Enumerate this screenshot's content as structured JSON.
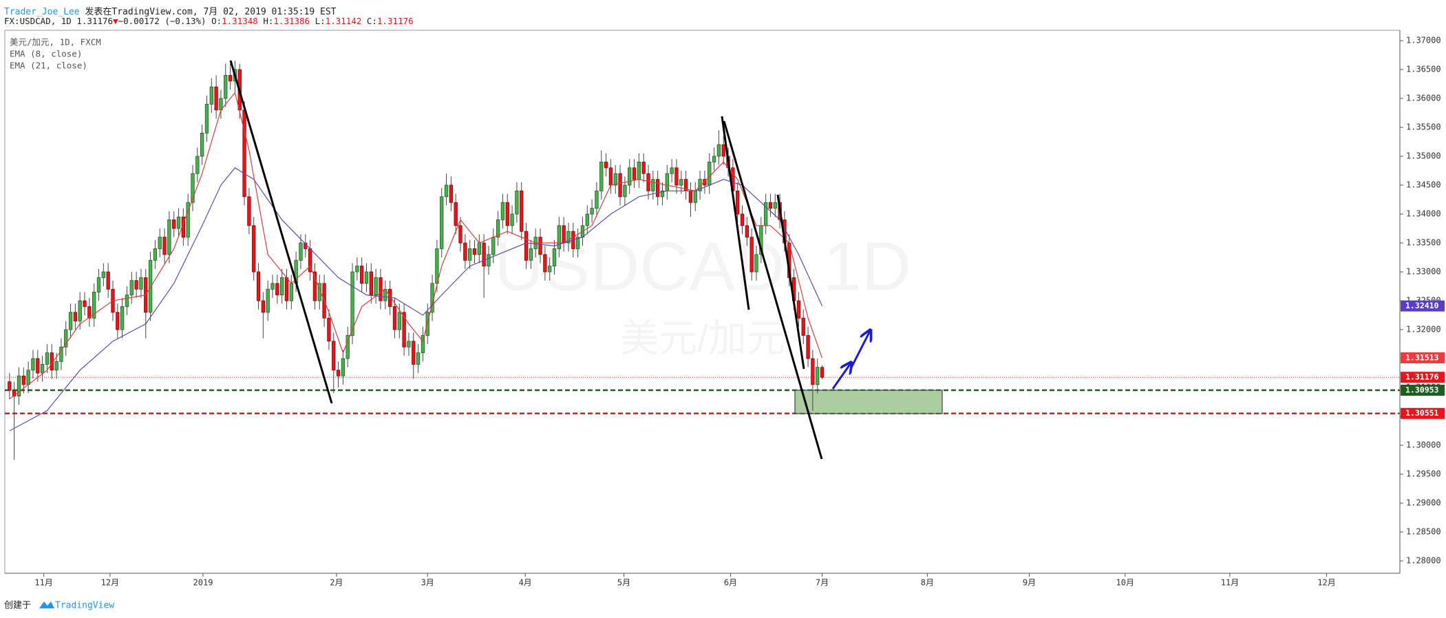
{
  "header": {
    "author": "Trader_Joe_Lee",
    "published": "发表在TradingView.com, 7月 02, 2019 01:35:19 EST",
    "symbol": "FX:USDCAD, 1D",
    "last": "1.31176",
    "arrow": "▼",
    "change": "−0.00172 (−0.13%)",
    "fields": [
      [
        "O:",
        "1.31348"
      ],
      [
        "H:",
        "1.31386"
      ],
      [
        "L:",
        "1.31142"
      ],
      [
        "C:",
        "1.31176"
      ]
    ]
  },
  "footer": {
    "created": "创建于",
    "brand": "TradingView"
  },
  "chart_data": {
    "type": "candlestick",
    "symbol_label": "美元/加元, 1D, FXCM",
    "watermark": {
      "title": "USDCAD, 1D",
      "subtitle": "美元/加元"
    },
    "up_color": "#4caf50",
    "down_color": "#e8161b",
    "wick_color": "#444",
    "xlim": [
      -1,
      296
    ],
    "xticks": [
      {
        "value": 7.3,
        "label": "11月"
      },
      {
        "value": 21.4,
        "label": "12月"
      },
      {
        "value": 41.2,
        "label": "2019"
      },
      {
        "value": 69.6,
        "label": "2月"
      },
      {
        "value": 89,
        "label": "3月"
      },
      {
        "value": 109.8,
        "label": "4月"
      },
      {
        "value": 130.8,
        "label": "5月"
      },
      {
        "value": 153.5,
        "label": "6月"
      },
      {
        "value": 173,
        "label": "7月"
      },
      {
        "value": 195.4,
        "label": "8月"
      },
      {
        "value": 217.1,
        "label": "9月"
      },
      {
        "value": 237.5,
        "label": "10月"
      },
      {
        "value": 259.8,
        "label": "11月"
      },
      {
        "value": 280.4,
        "label": "12月"
      }
    ],
    "ylim": [
      1.27786,
      1.37179
    ],
    "yticks": [
      {
        "value": 1.28,
        "label": "1.28000"
      },
      {
        "value": 1.285,
        "label": "1.28500"
      },
      {
        "value": 1.29,
        "label": "1.29000"
      },
      {
        "value": 1.295,
        "label": "1.29500"
      },
      {
        "value": 1.3,
        "label": "1.30000"
      },
      {
        "value": 1.305,
        "label": "1.30500"
      },
      {
        "value": 1.31,
        "label": "1.31000"
      },
      {
        "value": 1.315,
        "label": "1.31500"
      },
      {
        "value": 1.32,
        "label": "1.32000"
      },
      {
        "value": 1.325,
        "label": "1.32500"
      },
      {
        "value": 1.33,
        "label": "1.33000"
      },
      {
        "value": 1.335,
        "label": "1.33500"
      },
      {
        "value": 1.34,
        "label": "1.34000"
      },
      {
        "value": 1.345,
        "label": "1.34500"
      },
      {
        "value": 1.35,
        "label": "1.35000"
      },
      {
        "value": 1.355,
        "label": "1.35500"
      },
      {
        "value": 1.36,
        "label": "1.36000"
      },
      {
        "value": 1.365,
        "label": "1.36500"
      },
      {
        "value": 1.37,
        "label": "1.37000"
      }
    ],
    "candles": [
      [
        1.311,
        1.3125,
        1.308,
        1.3095
      ],
      [
        1.3095,
        1.311,
        1.2975,
        1.3085
      ],
      [
        1.3085,
        1.3135,
        1.307,
        1.312
      ],
      [
        1.312,
        1.3135,
        1.309,
        1.3105
      ],
      [
        1.3105,
        1.3145,
        1.309,
        1.313
      ],
      [
        1.313,
        1.3165,
        1.3115,
        1.315
      ],
      [
        1.315,
        1.3165,
        1.311,
        1.3125
      ],
      [
        1.3125,
        1.3155,
        1.311,
        1.314
      ],
      [
        1.314,
        1.3175,
        1.3125,
        1.316
      ],
      [
        1.316,
        1.3175,
        1.3115,
        1.313
      ],
      [
        1.313,
        1.316,
        1.3115,
        1.3145
      ],
      [
        1.3145,
        1.3185,
        1.313,
        1.317
      ],
      [
        1.317,
        1.3215,
        1.3155,
        1.32
      ],
      [
        1.32,
        1.3245,
        1.3185,
        1.323
      ],
      [
        1.323,
        1.3245,
        1.32,
        1.3215
      ],
      [
        1.3215,
        1.3265,
        1.32,
        1.325
      ],
      [
        1.325,
        1.3265,
        1.3225,
        1.324
      ],
      [
        1.324,
        1.3255,
        1.3205,
        1.322
      ],
      [
        1.322,
        1.328,
        1.3205,
        1.3265
      ],
      [
        1.3265,
        1.3305,
        1.325,
        1.329
      ],
      [
        1.329,
        1.3315,
        1.3275,
        1.33
      ],
      [
        1.33,
        1.3315,
        1.3255,
        1.327
      ],
      [
        1.327,
        1.3285,
        1.3215,
        1.323
      ],
      [
        1.323,
        1.3245,
        1.3185,
        1.32
      ],
      [
        1.32,
        1.3255,
        1.3185,
        1.324
      ],
      [
        1.324,
        1.3275,
        1.3225,
        1.326
      ],
      [
        1.326,
        1.33,
        1.3245,
        1.3285
      ],
      [
        1.3285,
        1.33,
        1.3255,
        1.327
      ],
      [
        1.327,
        1.3305,
        1.3255,
        1.329
      ],
      [
        1.329,
        1.3305,
        1.3185,
        1.323
      ],
      [
        1.323,
        1.3335,
        1.3215,
        1.332
      ],
      [
        1.332,
        1.3355,
        1.3305,
        1.334
      ],
      [
        1.334,
        1.3375,
        1.3325,
        1.336
      ],
      [
        1.336,
        1.3375,
        1.3315,
        1.333
      ],
      [
        1.333,
        1.3405,
        1.3315,
        1.339
      ],
      [
        1.339,
        1.3405,
        1.336,
        1.3375
      ],
      [
        1.3375,
        1.341,
        1.336,
        1.3395
      ],
      [
        1.3395,
        1.341,
        1.3345,
        1.336
      ],
      [
        1.336,
        1.3435,
        1.3345,
        1.342
      ],
      [
        1.342,
        1.3485,
        1.3405,
        1.347
      ],
      [
        1.347,
        1.3515,
        1.3455,
        1.35
      ],
      [
        1.35,
        1.3555,
        1.3485,
        1.354
      ],
      [
        1.354,
        1.3605,
        1.3525,
        1.359
      ],
      [
        1.359,
        1.3635,
        1.3575,
        1.362
      ],
      [
        1.362,
        1.364,
        1.3565,
        1.358
      ],
      [
        1.358,
        1.3615,
        1.3565,
        1.36
      ],
      [
        1.36,
        1.366,
        1.3585,
        1.364
      ],
      [
        1.364,
        1.366,
        1.3615,
        1.363
      ],
      [
        1.363,
        1.3665,
        1.361,
        1.365
      ],
      [
        1.365,
        1.366,
        1.3565,
        1.358
      ],
      [
        1.358,
        1.3595,
        1.3415,
        1.343
      ],
      [
        1.343,
        1.3445,
        1.3365,
        1.338
      ],
      [
        1.338,
        1.3395,
        1.3285,
        1.33
      ],
      [
        1.33,
        1.3315,
        1.3235,
        1.325
      ],
      [
        1.325,
        1.3265,
        1.3185,
        1.323
      ],
      [
        1.323,
        1.3285,
        1.3215,
        1.327
      ],
      [
        1.327,
        1.3295,
        1.3255,
        1.328
      ],
      [
        1.328,
        1.3295,
        1.3245,
        1.326
      ],
      [
        1.326,
        1.3305,
        1.3245,
        1.329
      ],
      [
        1.329,
        1.3305,
        1.3235,
        1.325
      ],
      [
        1.325,
        1.3295,
        1.3235,
        1.328
      ],
      [
        1.328,
        1.3335,
        1.3265,
        1.332
      ],
      [
        1.332,
        1.3365,
        1.3305,
        1.335
      ],
      [
        1.335,
        1.3365,
        1.3325,
        1.334
      ],
      [
        1.334,
        1.3355,
        1.3285,
        1.33
      ],
      [
        1.33,
        1.3315,
        1.3235,
        1.325
      ],
      [
        1.325,
        1.3295,
        1.3235,
        1.328
      ],
      [
        1.328,
        1.3295,
        1.3205,
        1.322
      ],
      [
        1.322,
        1.3235,
        1.3165,
        1.318
      ],
      [
        1.318,
        1.3195,
        1.309,
        1.313
      ],
      [
        1.313,
        1.3145,
        1.31,
        1.312
      ],
      [
        1.312,
        1.3165,
        1.3105,
        1.315
      ],
      [
        1.315,
        1.3205,
        1.3135,
        1.319
      ],
      [
        1.319,
        1.3315,
        1.3175,
        1.33
      ],
      [
        1.33,
        1.3325,
        1.3285,
        1.331
      ],
      [
        1.331,
        1.3325,
        1.3265,
        1.328
      ],
      [
        1.328,
        1.3315,
        1.3265,
        1.33
      ],
      [
        1.33,
        1.3315,
        1.3245,
        1.326
      ],
      [
        1.326,
        1.3305,
        1.3245,
        1.329
      ],
      [
        1.329,
        1.3305,
        1.3235,
        1.325
      ],
      [
        1.325,
        1.3285,
        1.3235,
        1.327
      ],
      [
        1.327,
        1.3285,
        1.3225,
        1.324
      ],
      [
        1.324,
        1.3255,
        1.3185,
        1.32
      ],
      [
        1.32,
        1.3245,
        1.3185,
        1.323
      ],
      [
        1.323,
        1.3245,
        1.3155,
        1.317
      ],
      [
        1.317,
        1.3195,
        1.3155,
        1.318
      ],
      [
        1.318,
        1.3195,
        1.3115,
        1.314
      ],
      [
        1.314,
        1.3175,
        1.3125,
        1.316
      ],
      [
        1.316,
        1.3205,
        1.3145,
        1.319
      ],
      [
        1.319,
        1.3245,
        1.3175,
        1.323
      ],
      [
        1.323,
        1.3295,
        1.3215,
        1.328
      ],
      [
        1.328,
        1.3355,
        1.3265,
        1.334
      ],
      [
        1.334,
        1.3445,
        1.3325,
        1.343
      ],
      [
        1.343,
        1.347,
        1.3415,
        1.345
      ],
      [
        1.345,
        1.3465,
        1.3405,
        1.342
      ],
      [
        1.342,
        1.3435,
        1.3365,
        1.338
      ],
      [
        1.338,
        1.3395,
        1.3335,
        1.335
      ],
      [
        1.335,
        1.3365,
        1.3305,
        1.332
      ],
      [
        1.332,
        1.3355,
        1.3305,
        1.334
      ],
      [
        1.334,
        1.3355,
        1.3315,
        1.333
      ],
      [
        1.333,
        1.3365,
        1.3315,
        1.335
      ],
      [
        1.335,
        1.3365,
        1.3255,
        1.331
      ],
      [
        1.331,
        1.3345,
        1.3295,
        1.333
      ],
      [
        1.333,
        1.3375,
        1.3315,
        1.336
      ],
      [
        1.336,
        1.3405,
        1.3345,
        1.339
      ],
      [
        1.339,
        1.3435,
        1.3375,
        1.342
      ],
      [
        1.342,
        1.3435,
        1.3365,
        1.338
      ],
      [
        1.338,
        1.3415,
        1.3365,
        1.34
      ],
      [
        1.34,
        1.3455,
        1.3385,
        1.344
      ],
      [
        1.344,
        1.3455,
        1.3355,
        1.337
      ],
      [
        1.337,
        1.3385,
        1.3305,
        1.332
      ],
      [
        1.332,
        1.3355,
        1.3305,
        1.334
      ],
      [
        1.334,
        1.3375,
        1.3325,
        1.336
      ],
      [
        1.336,
        1.3375,
        1.3315,
        1.333
      ],
      [
        1.333,
        1.3345,
        1.3285,
        1.33
      ],
      [
        1.33,
        1.3325,
        1.3285,
        1.331
      ],
      [
        1.331,
        1.3355,
        1.3295,
        1.334
      ],
      [
        1.334,
        1.3395,
        1.3325,
        1.338
      ],
      [
        1.338,
        1.3395,
        1.3335,
        1.335
      ],
      [
        1.335,
        1.3385,
        1.3335,
        1.337
      ],
      [
        1.337,
        1.3385,
        1.3325,
        1.334
      ],
      [
        1.334,
        1.3375,
        1.3325,
        1.336
      ],
      [
        1.336,
        1.3395,
        1.3345,
        1.338
      ],
      [
        1.338,
        1.3415,
        1.3365,
        1.34
      ],
      [
        1.34,
        1.3425,
        1.3385,
        1.341
      ],
      [
        1.341,
        1.3455,
        1.3395,
        1.344
      ],
      [
        1.344,
        1.351,
        1.3425,
        1.349
      ],
      [
        1.349,
        1.3505,
        1.3465,
        1.348
      ],
      [
        1.348,
        1.3495,
        1.3435,
        1.345
      ],
      [
        1.345,
        1.3485,
        1.3435,
        1.347
      ],
      [
        1.347,
        1.3485,
        1.3415,
        1.343
      ],
      [
        1.343,
        1.3465,
        1.3415,
        1.345
      ],
      [
        1.345,
        1.3495,
        1.3435,
        1.348
      ],
      [
        1.348,
        1.3495,
        1.3445,
        1.346
      ],
      [
        1.346,
        1.3505,
        1.3445,
        1.349
      ],
      [
        1.349,
        1.3505,
        1.3455,
        1.347
      ],
      [
        1.347,
        1.3485,
        1.3425,
        1.344
      ],
      [
        1.344,
        1.3475,
        1.3425,
        1.346
      ],
      [
        1.346,
        1.3475,
        1.3415,
        1.343
      ],
      [
        1.343,
        1.3455,
        1.3415,
        1.344
      ],
      [
        1.344,
        1.3485,
        1.3425,
        1.347
      ],
      [
        1.347,
        1.3495,
        1.3455,
        1.348
      ],
      [
        1.348,
        1.3495,
        1.3435,
        1.345
      ],
      [
        1.345,
        1.3475,
        1.3435,
        1.346
      ],
      [
        1.346,
        1.3475,
        1.3425,
        1.344
      ],
      [
        1.344,
        1.3455,
        1.3395,
        1.342
      ],
      [
        1.342,
        1.3455,
        1.3405,
        1.344
      ],
      [
        1.344,
        1.3475,
        1.3425,
        1.346
      ],
      [
        1.346,
        1.3475,
        1.3435,
        1.345
      ],
      [
        1.345,
        1.3505,
        1.3435,
        1.349
      ],
      [
        1.349,
        1.3515,
        1.3475,
        1.35
      ],
      [
        1.35,
        1.3545,
        1.3485,
        1.352
      ],
      [
        1.352,
        1.3535,
        1.3485,
        1.35
      ],
      [
        1.35,
        1.3515,
        1.3465,
        1.348
      ],
      [
        1.348,
        1.3495,
        1.3425,
        1.344
      ],
      [
        1.344,
        1.3455,
        1.3385,
        1.34
      ],
      [
        1.34,
        1.3415,
        1.3365,
        1.338
      ],
      [
        1.338,
        1.3395,
        1.3345,
        1.336
      ],
      [
        1.336,
        1.3375,
        1.3285,
        1.33
      ],
      [
        1.33,
        1.3345,
        1.3285,
        1.333
      ],
      [
        1.333,
        1.3395,
        1.3315,
        1.338
      ],
      [
        1.338,
        1.3435,
        1.3365,
        1.342
      ],
      [
        1.342,
        1.3435,
        1.3395,
        1.341
      ],
      [
        1.341,
        1.3435,
        1.3395,
        1.342
      ],
      [
        1.342,
        1.3435,
        1.3375,
        1.339
      ],
      [
        1.339,
        1.3405,
        1.3335,
        1.335
      ],
      [
        1.335,
        1.3365,
        1.3275,
        1.329
      ],
      [
        1.329,
        1.3305,
        1.3235,
        1.325
      ],
      [
        1.325,
        1.3265,
        1.3205,
        1.322
      ],
      [
        1.322,
        1.3235,
        1.3175,
        1.319
      ],
      [
        1.319,
        1.3205,
        1.3135,
        1.315
      ],
      [
        1.315,
        1.3165,
        1.306,
        1.3105
      ],
      [
        1.3105,
        1.315,
        1.309,
        1.3135
      ],
      [
        1.31348,
        1.31386,
        1.31142,
        1.31176
      ]
    ],
    "series": [
      {
        "name": "EMA (8, close)",
        "color": "#e53935",
        "x": [
          0,
          8,
          15,
          22,
          29,
          35,
          41,
          45,
          48,
          51,
          55,
          60,
          64,
          68,
          71,
          75,
          80,
          85,
          88,
          92,
          96,
          100,
          106,
          112,
          118,
          124,
          128,
          134,
          140,
          146,
          152,
          155,
          159,
          162,
          166,
          170,
          173
        ],
        "values": [
          1.308,
          1.313,
          1.321,
          1.325,
          1.326,
          1.334,
          1.347,
          1.358,
          1.361,
          1.351,
          1.333,
          1.328,
          1.331,
          1.323,
          1.316,
          1.324,
          1.327,
          1.321,
          1.318,
          1.331,
          1.339,
          1.335,
          1.337,
          1.335,
          1.335,
          1.338,
          1.345,
          1.346,
          1.345,
          1.344,
          1.349,
          1.346,
          1.338,
          1.338,
          1.335,
          1.322,
          1.3151
        ]
      },
      {
        "name": "EMA (21, close)",
        "color": "#5b4bb7",
        "x": [
          0,
          8,
          15,
          22,
          29,
          35,
          41,
          45,
          48,
          52,
          58,
          64,
          70,
          76,
          82,
          88,
          92,
          98,
          104,
          110,
          116,
          122,
          128,
          134,
          140,
          146,
          152,
          156,
          160,
          164,
          168,
          173
        ],
        "values": [
          1.3025,
          1.306,
          1.313,
          1.318,
          1.321,
          1.328,
          1.338,
          1.345,
          1.348,
          1.346,
          1.339,
          1.334,
          1.329,
          1.326,
          1.3255,
          1.3225,
          1.326,
          1.331,
          1.333,
          1.335,
          1.3345,
          1.336,
          1.34,
          1.343,
          1.344,
          1.344,
          1.346,
          1.345,
          1.342,
          1.339,
          1.333,
          1.3241
        ]
      }
    ],
    "price_tags": [
      {
        "value": 1.3241,
        "label": "1.32410",
        "color": "#5b3cc4"
      },
      {
        "value": 1.31513,
        "color": "#ef3b3b"
      },
      {
        "value": 1.31176,
        "color": "#e8161b",
        "line": "dotted"
      },
      {
        "value": 1.30953,
        "color": "#1b5e20",
        "line": "dashed"
      },
      {
        "value": 1.30551,
        "color": "#e8161b",
        "line": "dashed"
      }
    ]
  }
}
